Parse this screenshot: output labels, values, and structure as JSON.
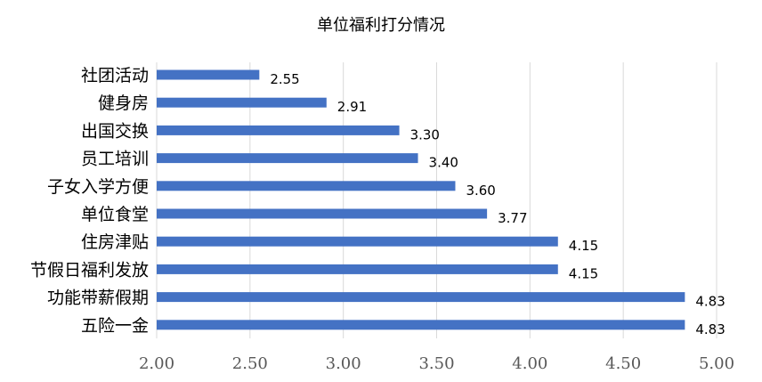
{
  "chart_data": {
    "type": "bar",
    "orientation": "horizontal",
    "title": "单位福利打分情况",
    "categories": [
      "社团活动",
      "健身房",
      "出国交换",
      "员工培训",
      "子女入学方便",
      "单位食堂",
      "住房津贴",
      "节假日福利发放",
      "功能带薪假期",
      "五险一金"
    ],
    "values": [
      2.55,
      2.91,
      3.3,
      3.4,
      3.6,
      3.77,
      4.15,
      4.15,
      4.83,
      4.83
    ],
    "value_labels": [
      "2.55",
      "2.91",
      "3.30",
      "3.40",
      "3.60",
      "3.77",
      "4.15",
      "4.15",
      "4.83",
      "4.83"
    ],
    "xlim": [
      2.0,
      5.0
    ],
    "xticks": [
      "2.00",
      "2.50",
      "3.00",
      "3.50",
      "4.00",
      "4.50",
      "5.00"
    ],
    "xtick_values": [
      2.0,
      2.5,
      3.0,
      3.5,
      4.0,
      4.5,
      5.0
    ],
    "grid": true,
    "bar_color": "#4472C4",
    "grid_color": "#D9D9D9"
  }
}
